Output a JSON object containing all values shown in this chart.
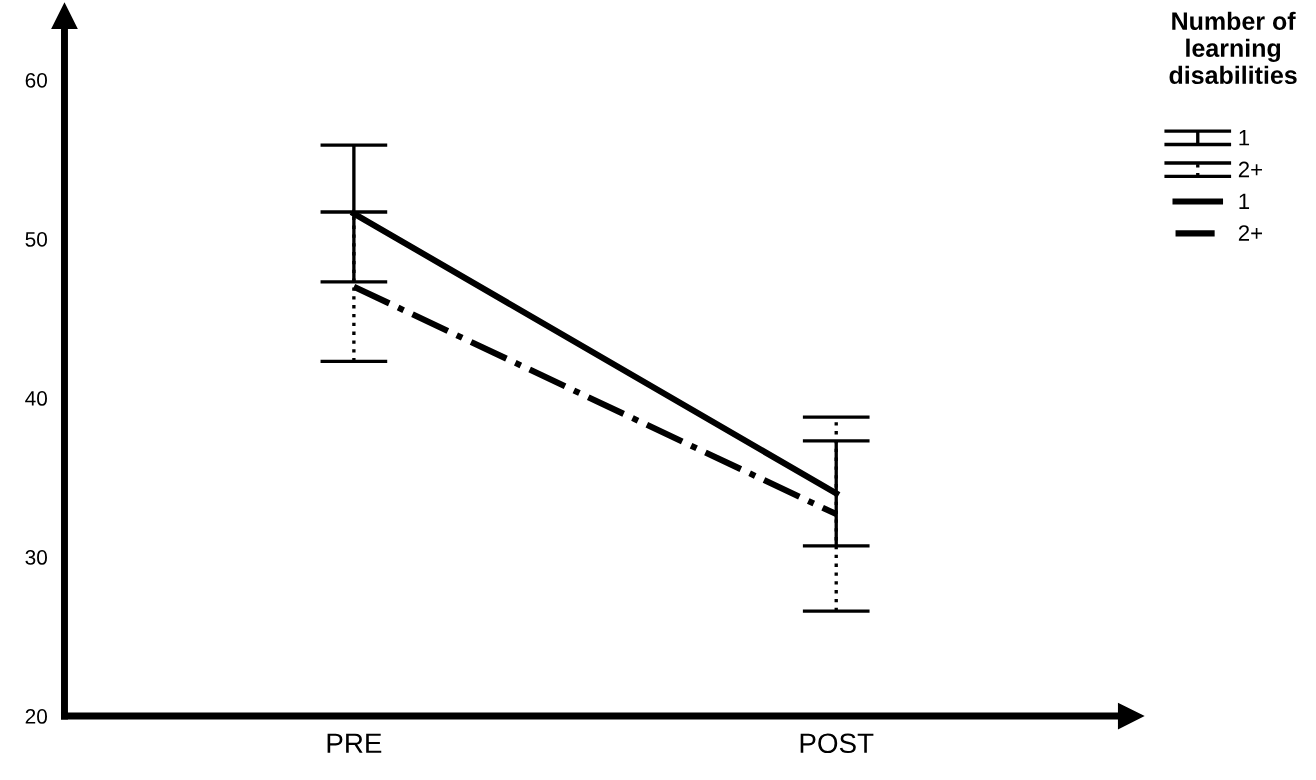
{
  "chart_data": {
    "type": "line",
    "categories": [
      "PRE",
      "POST"
    ],
    "legend_title": "Number of learning disabilities",
    "legend": "top right",
    "ylim": [
      20,
      64
    ],
    "yticks": [
      20,
      30,
      40,
      50,
      60
    ],
    "grid": false,
    "marker": "none",
    "series": [
      {
        "name": "1",
        "color": "#000000",
        "line_style": "solid",
        "values": [
          51.6,
          34.0
        ],
        "errors": [
          4.3,
          3.3
        ]
      },
      {
        "name": "2+",
        "color": "#000000",
        "line_style": "dashdot",
        "values": [
          47.0,
          32.7
        ],
        "errors": [
          4.7,
          6.1
        ]
      }
    ]
  }
}
